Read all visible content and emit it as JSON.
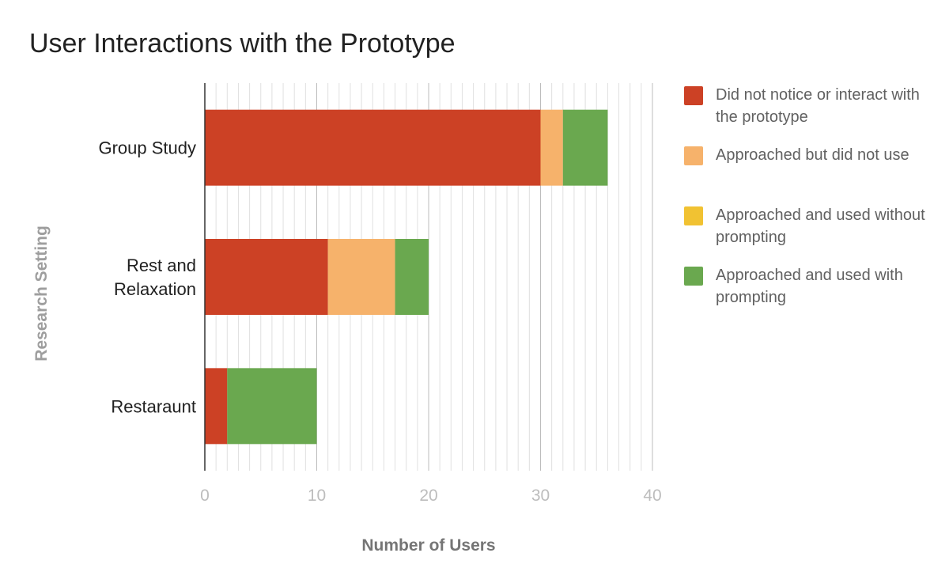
{
  "chart_data": {
    "type": "bar",
    "orientation": "horizontal",
    "stacked": true,
    "title": "User Interactions with the Prototype",
    "xlabel": "Number of Users",
    "ylabel": "Research Setting",
    "xlim": [
      0,
      40
    ],
    "x_ticks": [
      "0",
      "10",
      "20",
      "30",
      "40"
    ],
    "grid": true,
    "legend_position": "right",
    "categories": [
      "Group Study",
      "Rest and Relaxation",
      "Restaraunt"
    ],
    "series": [
      {
        "name": "Did not notice or interact with the prototype",
        "color": "#cc4125",
        "values": [
          30,
          11,
          2
        ]
      },
      {
        "name": "Approached but did not use",
        "color": "#f6b26b",
        "values": [
          2,
          6,
          0
        ]
      },
      {
        "name": "Approached and used without prompting",
        "color": "#f1c232",
        "values": [
          0,
          0,
          0
        ]
      },
      {
        "name": "Approached and used with prompting",
        "color": "#6aa84f",
        "values": [
          4,
          3,
          8
        ]
      }
    ]
  }
}
